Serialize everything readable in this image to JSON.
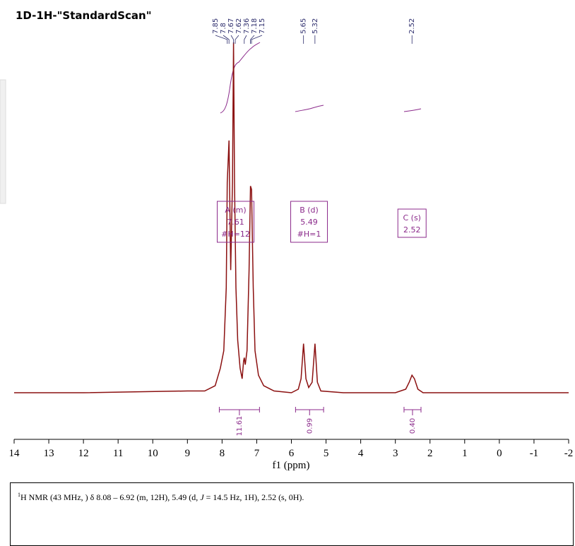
{
  "chart_data": {
    "type": "line",
    "title": "1D-1H-\"StandardScan\"",
    "x_label": "f1 (ppm)",
    "xlim": [
      14,
      -2
    ],
    "xticks": [
      14,
      13,
      12,
      11,
      10,
      9,
      8,
      7,
      6,
      5,
      4,
      3,
      2,
      1,
      0,
      -1,
      -2
    ],
    "ylim": [
      0,
      100
    ],
    "color": "#8b1010",
    "x": [
      14,
      12,
      9,
      8.5,
      8.2,
      8.05,
      7.95,
      7.88,
      7.85,
      7.8,
      7.75,
      7.7,
      7.67,
      7.64,
      7.6,
      7.55,
      7.48,
      7.42,
      7.38,
      7.36,
      7.33,
      7.28,
      7.22,
      7.18,
      7.15,
      7.1,
      7.05,
      6.95,
      6.8,
      6.5,
      6.0,
      5.8,
      5.72,
      5.65,
      5.58,
      5.5,
      5.4,
      5.32,
      5.25,
      5.15,
      4.5,
      3.0,
      2.7,
      2.6,
      2.52,
      2.45,
      2.35,
      2.2,
      0,
      -2
    ],
    "values": [
      0,
      0,
      0.5,
      0.5,
      2,
      7,
      12,
      30,
      60,
      72,
      35,
      60,
      100,
      60,
      30,
      15,
      7,
      4,
      9,
      10,
      8,
      12,
      35,
      59,
      58,
      30,
      12,
      5,
      2,
      0.5,
      0,
      1,
      4,
      14,
      4,
      1.5,
      3,
      14,
      3,
      0.5,
      0,
      0,
      1,
      3,
      5,
      4,
      1,
      0,
      0,
      0
    ],
    "peak_labels": [
      7.85,
      7.8,
      7.67,
      7.62,
      7.36,
      7.18,
      7.15,
      5.65,
      5.32,
      2.52
    ],
    "integrals": [
      {
        "from": 8.08,
        "to": 6.92,
        "value": 11.61
      },
      {
        "from": 5.88,
        "to": 5.07,
        "value": 0.99
      },
      {
        "from": 2.75,
        "to": 2.26,
        "value": {
          "value": 0.4,
          "label": "0.40"
        }
      }
    ],
    "multiplets": [
      {
        "label": "A (m)",
        "shift": 7.61,
        "count": "#H=12"
      },
      {
        "label": "B (d)",
        "shift": 5.49,
        "count": "#H=1"
      },
      {
        "label": "C (s)",
        "shift": 2.52
      }
    ],
    "accent_color": "#8b2a8b"
  },
  "report": [
    "1",
    "H NMR (43 MHz, ) δ 8.08 – 6.92 (m, 12H), 5.49 (d, ",
    "J",
    " = 14.5 Hz, 1H), 2.52 (s, 0H)."
  ]
}
